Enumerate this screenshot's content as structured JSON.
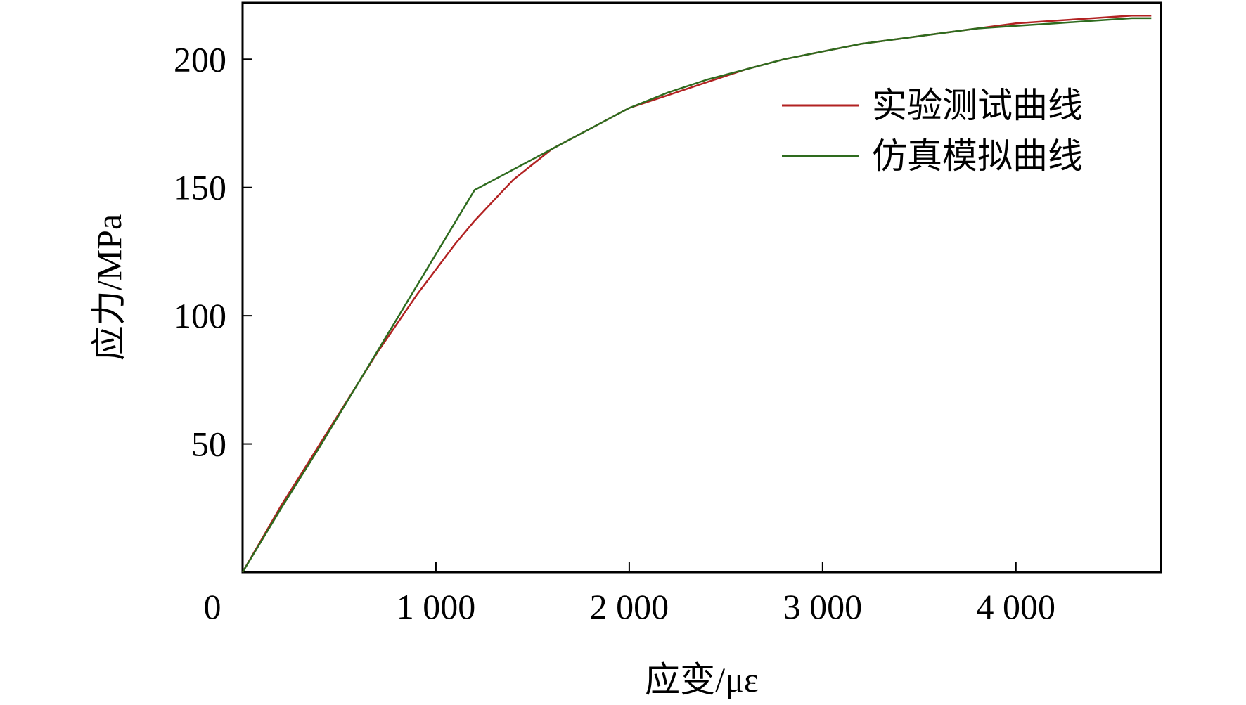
{
  "chart_data": {
    "type": "line",
    "title": "",
    "xlabel": "应变/με",
    "ylabel": "应力/MPa",
    "xlim": [
      0,
      4750
    ],
    "ylim": [
      0,
      222
    ],
    "x_ticks": [
      {
        "value": 0,
        "label": "0"
      },
      {
        "value": 1000,
        "label": "1 000"
      },
      {
        "value": 2000,
        "label": "2 000"
      },
      {
        "value": 3000,
        "label": "3 000"
      },
      {
        "value": 4000,
        "label": "4 000"
      }
    ],
    "y_ticks": [
      {
        "value": 50,
        "label": "50"
      },
      {
        "value": 100,
        "label": "100"
      },
      {
        "value": 150,
        "label": "150"
      },
      {
        "value": 200,
        "label": "200"
      }
    ],
    "grid": false,
    "legend_position": "top-right",
    "series": [
      {
        "name": "实验测试曲线",
        "color": "#b22222",
        "points": [
          [
            0,
            0
          ],
          [
            100,
            13
          ],
          [
            200,
            26
          ],
          [
            300,
            38
          ],
          [
            400,
            50
          ],
          [
            500,
            62
          ],
          [
            600,
            74
          ],
          [
            700,
            86
          ],
          [
            800,
            97
          ],
          [
            900,
            108
          ],
          [
            1000,
            118
          ],
          [
            1100,
            128
          ],
          [
            1200,
            137
          ],
          [
            1300,
            145
          ],
          [
            1400,
            153
          ],
          [
            1500,
            159
          ],
          [
            1600,
            165
          ],
          [
            1700,
            169
          ],
          [
            1800,
            173
          ],
          [
            1900,
            177
          ],
          [
            2000,
            181
          ],
          [
            2200,
            186
          ],
          [
            2400,
            191
          ],
          [
            2600,
            196
          ],
          [
            2800,
            200
          ],
          [
            3000,
            203
          ],
          [
            3200,
            206
          ],
          [
            3400,
            208
          ],
          [
            3600,
            210
          ],
          [
            3800,
            212
          ],
          [
            4000,
            214
          ],
          [
            4200,
            215
          ],
          [
            4400,
            216
          ],
          [
            4600,
            217
          ],
          [
            4700,
            217
          ]
        ]
      },
      {
        "name": "仿真模拟曲线",
        "color": "#2e6b1e",
        "points": [
          [
            0,
            0
          ],
          [
            200,
            25
          ],
          [
            400,
            49
          ],
          [
            600,
            74
          ],
          [
            800,
            99
          ],
          [
            1000,
            124
          ],
          [
            1200,
            149
          ],
          [
            1300,
            153
          ],
          [
            1400,
            157
          ],
          [
            1500,
            161
          ],
          [
            1600,
            165
          ],
          [
            1700,
            169
          ],
          [
            1800,
            173
          ],
          [
            1900,
            177
          ],
          [
            2000,
            181
          ],
          [
            2200,
            187
          ],
          [
            2400,
            192
          ],
          [
            2600,
            196
          ],
          [
            2800,
            200
          ],
          [
            3000,
            203
          ],
          [
            3200,
            206
          ],
          [
            3400,
            208
          ],
          [
            3600,
            210
          ],
          [
            3800,
            212
          ],
          [
            4000,
            213
          ],
          [
            4200,
            214
          ],
          [
            4400,
            215
          ],
          [
            4600,
            216
          ],
          [
            4700,
            216
          ]
        ]
      }
    ]
  }
}
